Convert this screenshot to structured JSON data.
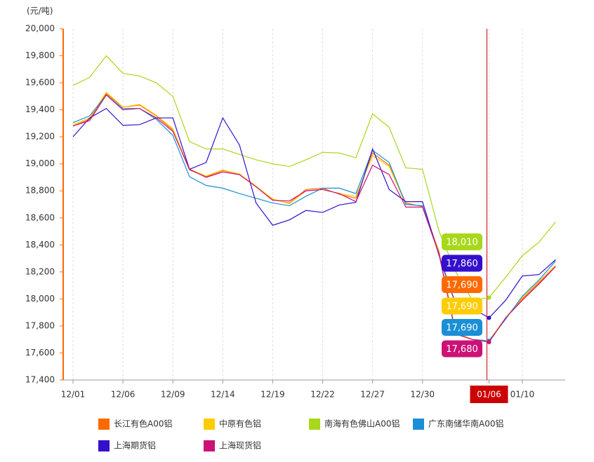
{
  "chart_data": {
    "type": "line",
    "y_unit_label": "(元/吨)",
    "categories": [
      "12/01",
      null,
      null,
      "12/06",
      null,
      null,
      "12/09",
      null,
      null,
      "12/14",
      null,
      null,
      "12/19",
      null,
      null,
      "12/22",
      null,
      null,
      "12/27",
      null,
      null,
      "12/30",
      null,
      null,
      null,
      "01/06",
      null,
      "01/10",
      null,
      null
    ],
    "ylim": [
      17400,
      20000
    ],
    "yticks": [
      {
        "value": 17400,
        "label": "17,400"
      },
      {
        "value": 17600,
        "label": "17,600"
      },
      {
        "value": 17800,
        "label": "17,800"
      },
      {
        "value": 18000,
        "label": "18,000"
      },
      {
        "value": 18200,
        "label": "18,200"
      },
      {
        "value": 18400,
        "label": "18,400"
      },
      {
        "value": 18600,
        "label": "18,600"
      },
      {
        "value": 18800,
        "label": "18,800"
      },
      {
        "value": 19000,
        "label": "19,000"
      },
      {
        "value": 19200,
        "label": "19,200"
      },
      {
        "value": 19400,
        "label": "19,400"
      },
      {
        "value": 19600,
        "label": "19,600"
      },
      {
        "value": 19800,
        "label": "19,800"
      },
      {
        "value": 20000,
        "label": "20,000"
      }
    ],
    "grid": true,
    "series": [
      {
        "name": "长江有色A00铝",
        "color": "#ff6a00",
        "values": [
          19280,
          19330,
          19520,
          19420,
          19435,
          19355,
          19250,
          18955,
          18905,
          18950,
          18925,
          18830,
          18735,
          18710,
          18810,
          18820,
          18775,
          18745,
          19080,
          18990,
          18710,
          18685,
          18350,
          17750,
          17700,
          17690,
          17860,
          18000,
          18120,
          18240
        ],
        "value_labels": [
          null,
          null,
          null,
          null,
          null,
          null,
          null,
          null,
          null,
          null,
          null,
          null,
          null,
          null,
          null,
          null,
          null,
          null,
          null,
          null,
          null,
          null,
          null,
          null,
          null,
          "17,690",
          null,
          null,
          null,
          null
        ]
      },
      {
        "name": "中原有色铝",
        "color": "#ffcc00",
        "values": [
          19290,
          19340,
          19530,
          19420,
          19440,
          19360,
          19260,
          18960,
          18910,
          18955,
          18925,
          18835,
          18740,
          18705,
          18800,
          18810,
          18780,
          18760,
          19060,
          18980,
          18700,
          18690,
          18340,
          17750,
          17700,
          17690,
          17860,
          18010,
          18130,
          18250
        ],
        "value_labels": [
          null,
          null,
          null,
          null,
          null,
          null,
          null,
          null,
          null,
          null,
          null,
          null,
          null,
          null,
          null,
          null,
          null,
          null,
          null,
          null,
          null,
          null,
          null,
          null,
          null,
          "17,690",
          null,
          null,
          null,
          null
        ]
      },
      {
        "name": "南海有色佛山A00铝",
        "color": "#a8d81a",
        "values": [
          19580,
          19640,
          19800,
          19670,
          19650,
          19600,
          19500,
          19165,
          19110,
          19110,
          19070,
          19030,
          19000,
          18980,
          19030,
          19085,
          19080,
          19045,
          19370,
          19270,
          18970,
          18960,
          18500,
          18200,
          17990,
          18010,
          18160,
          18320,
          18420,
          18570
        ],
        "value_labels": [
          null,
          null,
          null,
          null,
          null,
          null,
          null,
          null,
          null,
          null,
          null,
          null,
          null,
          null,
          null,
          null,
          null,
          null,
          null,
          null,
          null,
          null,
          null,
          null,
          null,
          "18,010",
          null,
          null,
          null,
          null
        ]
      },
      {
        "name": "广东南储华南A00铝",
        "color": "#1a8fd6",
        "values": [
          19305,
          19355,
          19510,
          19410,
          19410,
          19330,
          19210,
          18905,
          18840,
          18820,
          18780,
          18745,
          18710,
          18690,
          18760,
          18820,
          18820,
          18780,
          19100,
          19010,
          18700,
          18690,
          18330,
          17740,
          17700,
          17690,
          17850,
          18020,
          18140,
          18280
        ],
        "value_labels": [
          null,
          null,
          null,
          null,
          null,
          null,
          null,
          null,
          null,
          null,
          null,
          null,
          null,
          null,
          null,
          null,
          null,
          null,
          null,
          null,
          null,
          null,
          null,
          null,
          null,
          "17,690",
          null,
          null,
          null,
          null
        ]
      },
      {
        "name": "上海期货铝",
        "color": "#3311cc",
        "values": [
          19200,
          19340,
          19410,
          19285,
          19290,
          19340,
          19340,
          18960,
          19010,
          19340,
          19140,
          18710,
          18545,
          18585,
          18655,
          18640,
          18695,
          18715,
          19110,
          18810,
          18720,
          18720,
          18320,
          17960,
          17930,
          17860,
          17990,
          18170,
          18180,
          18290
        ],
        "value_labels": [
          null,
          null,
          null,
          null,
          null,
          null,
          null,
          null,
          null,
          null,
          null,
          null,
          null,
          null,
          null,
          null,
          null,
          null,
          null,
          null,
          null,
          null,
          null,
          null,
          null,
          "17,860",
          null,
          null,
          null,
          null
        ]
      },
      {
        "name": "上海现货铝",
        "color": "#cc1177",
        "values": [
          19280,
          19320,
          19510,
          19400,
          19410,
          19340,
          19240,
          18960,
          18900,
          18940,
          18920,
          18830,
          18730,
          18725,
          18800,
          18810,
          18780,
          18720,
          18990,
          18920,
          18680,
          18680,
          18330,
          17740,
          17700,
          17680,
          17860,
          17990,
          18110,
          18240
        ],
        "value_labels": [
          null,
          null,
          null,
          null,
          null,
          null,
          null,
          null,
          null,
          null,
          null,
          null,
          null,
          null,
          null,
          null,
          null,
          null,
          null,
          null,
          null,
          null,
          null,
          null,
          null,
          "17,680",
          null,
          null,
          null,
          null
        ]
      }
    ]
  }
}
